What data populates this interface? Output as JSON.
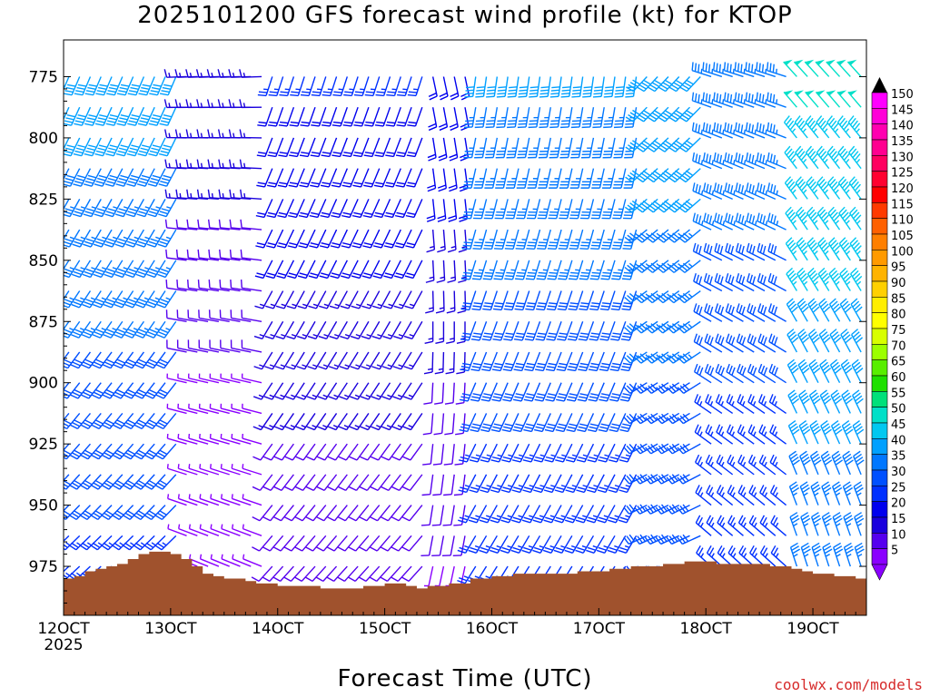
{
  "chart_data": {
    "type": "wind_profile_barbs",
    "title": "2025101200 GFS forecast wind profile (kt) for KTOP",
    "xlabel": "Forecast Time (UTC)",
    "credit": "coolwx.com/models",
    "x_range_hours": [
      0,
      75
    ],
    "x_ticks": [
      {
        "hour": 0,
        "label": "12OCT",
        "sublabel": "2025"
      },
      {
        "hour": 10,
        "label": "13OCT"
      },
      {
        "hour": 20,
        "label": "14OCT"
      },
      {
        "hour": 30,
        "label": "15OCT"
      },
      {
        "hour": 40,
        "label": "16OCT"
      },
      {
        "hour": 50,
        "label": "17OCT"
      },
      {
        "hour": 60,
        "label": "18OCT"
      },
      {
        "hour": 70,
        "label": "19OCT"
      }
    ],
    "y_range_mb": [
      760,
      995
    ],
    "y_ticks": [
      775,
      800,
      825,
      850,
      875,
      900,
      925,
      950,
      975
    ],
    "levels_mb": [
      775,
      787.5,
      800,
      812.5,
      825,
      837.5,
      850,
      862.5,
      875,
      887.5,
      900,
      912.5,
      925,
      937.5,
      950,
      962.5,
      975
    ],
    "colorbar": {
      "values": [
        150,
        145,
        140,
        135,
        130,
        125,
        120,
        115,
        110,
        105,
        100,
        95,
        90,
        85,
        80,
        75,
        70,
        65,
        60,
        55,
        50,
        45,
        40,
        35,
        30,
        25,
        20,
        15,
        10,
        5
      ],
      "colors": [
        "#ff00ff",
        "#ff00d8",
        "#ff00b0",
        "#ff0090",
        "#ff0060",
        "#ff0030",
        "#ff0000",
        "#ff3a00",
        "#ff6000",
        "#ff7f00",
        "#ff9a00",
        "#ffb300",
        "#ffd000",
        "#ffee00",
        "#ffff00",
        "#d8ff00",
        "#9cff00",
        "#58ee00",
        "#1ee000",
        "#00e07a",
        "#00e0c8",
        "#00c8f0",
        "#00a0ff",
        "#0077ff",
        "#0050ff",
        "#0030ff",
        "#0000ee",
        "#1a00dd",
        "#5500ee",
        "#8a00ff"
      ]
    },
    "surface_pressure_mb": [
      980,
      979,
      977,
      976,
      975,
      974,
      972,
      970,
      969,
      969,
      970,
      972,
      975,
      978,
      979,
      980,
      980,
      981,
      982,
      982,
      983,
      983,
      983,
      983,
      984,
      984,
      984,
      984,
      983,
      983,
      982,
      982,
      983,
      984,
      983,
      983,
      982,
      982,
      980,
      980,
      979,
      979,
      978,
      978,
      978,
      978,
      978,
      978,
      977,
      977,
      977,
      976,
      976,
      975,
      975,
      975,
      974,
      974,
      973,
      973,
      973,
      974,
      974,
      974,
      974,
      974,
      975,
      975,
      976,
      977,
      978,
      978,
      979,
      979,
      980,
      981
    ],
    "wind_segments": [
      {
        "hours": [
          0,
          11
        ],
        "dir_deg": 215,
        "speed_kt": 33
      },
      {
        "hours": [
          11,
          19
        ],
        "dir_deg": 280,
        "speed_kt": 9
      },
      {
        "hours": [
          19,
          34
        ],
        "dir_deg": 210,
        "speed_kt": 16
      },
      {
        "hours": [
          34,
          38
        ],
        "dir_deg": 180,
        "speed_kt": 14
      },
      {
        "hours": [
          38,
          54
        ],
        "dir_deg": 200,
        "speed_kt": 31
      },
      {
        "hours": [
          54,
          60
        ],
        "dir_deg": 235,
        "speed_kt": 34
      },
      {
        "hours": [
          60,
          68
        ],
        "dir_deg": 300,
        "speed_kt": 30
      },
      {
        "hours": [
          68,
          75
        ],
        "dir_deg": 330,
        "speed_kt": 42
      }
    ]
  }
}
